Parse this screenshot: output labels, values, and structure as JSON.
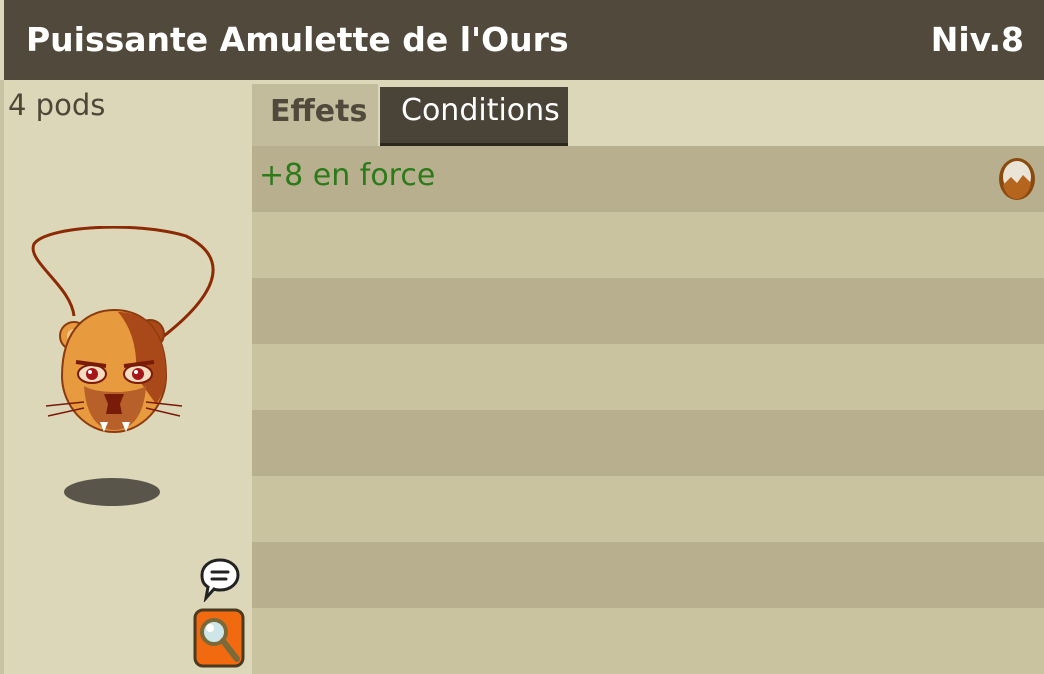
{
  "item": {
    "name": "Puissante Amulette de l'Ours",
    "level": "Niv.8",
    "weight": "4 pods"
  },
  "tabs": [
    {
      "label": "Effets",
      "active": true
    },
    {
      "label": "Conditions",
      "active": false
    }
  ],
  "effects": [
    {
      "text": "+8 en force",
      "icon": "strength-element-icon"
    }
  ],
  "empty_rows": 7,
  "colors": {
    "title_bar": "#514a3c",
    "panel_bg": "#dcd7b8",
    "row_dark": "#b8af8f",
    "row_light": "#cac39f",
    "effect_text": "#2d7a1b",
    "active_tab": "#c2bb9c",
    "inactive_tab": "#4a4337",
    "search_button": "#f26a10"
  },
  "icons": {
    "chat": "speech-bubble-icon",
    "search": "magnifier-icon"
  }
}
